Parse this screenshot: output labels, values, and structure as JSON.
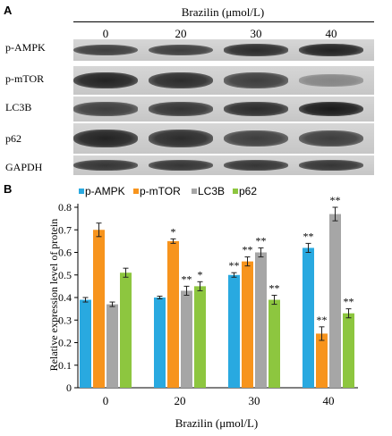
{
  "panelA": {
    "letter": "A",
    "title": "Brazilin (μmol/L)",
    "doses": [
      "0",
      "20",
      "30",
      "40"
    ],
    "rows": [
      {
        "label": "p-AMPK",
        "intensity": [
          0.8,
          0.8,
          0.9,
          0.95
        ]
      },
      {
        "label": "p-mTOR",
        "intensity": [
          0.95,
          0.9,
          0.8,
          0.4
        ]
      },
      {
        "label": "LC3B",
        "intensity": [
          0.8,
          0.85,
          0.9,
          1.0
        ]
      },
      {
        "label": "p62",
        "intensity": [
          0.95,
          0.9,
          0.8,
          0.8
        ]
      },
      {
        "label": "GAPDH",
        "intensity": [
          0.85,
          0.85,
          0.85,
          0.85
        ]
      }
    ]
  },
  "panelB": {
    "letter": "B"
  },
  "chart_data": {
    "type": "bar",
    "categories": [
      "0",
      "20",
      "30",
      "40"
    ],
    "xlabel": "Brazilin (μmol/L)",
    "ylabel": "Relative expression level of protein",
    "ylim": [
      0,
      0.8
    ],
    "yticks": [
      "0",
      "0.1",
      "0.2",
      "0.3",
      "0.4",
      "0.5",
      "0.6",
      "0.7",
      "0.8"
    ],
    "legend_position": "top",
    "grid": false,
    "series": [
      {
        "name": "p-AMPK",
        "color": "#29a9e0",
        "values": [
          0.39,
          0.4,
          0.5,
          0.62
        ],
        "errors": [
          0.01,
          0.0,
          0.01,
          0.02
        ],
        "annotations": [
          "",
          "",
          "**",
          "**"
        ]
      },
      {
        "name": "p-mTOR",
        "color": "#f7941d",
        "values": [
          0.7,
          0.65,
          0.56,
          0.24
        ],
        "errors": [
          0.03,
          0.01,
          0.02,
          0.03
        ],
        "annotations": [
          "",
          "*",
          "**",
          "**"
        ]
      },
      {
        "name": "LC3B",
        "color": "#a6a6a6",
        "values": [
          0.37,
          0.43,
          0.6,
          0.77
        ],
        "errors": [
          0.01,
          0.02,
          0.02,
          0.03
        ],
        "annotations": [
          "",
          "**",
          "**",
          "**"
        ]
      },
      {
        "name": "p62",
        "color": "#8dc63f",
        "values": [
          0.51,
          0.45,
          0.39,
          0.33
        ],
        "errors": [
          0.02,
          0.02,
          0.02,
          0.02
        ],
        "annotations": [
          "",
          "*",
          "**",
          "**"
        ]
      }
    ]
  }
}
